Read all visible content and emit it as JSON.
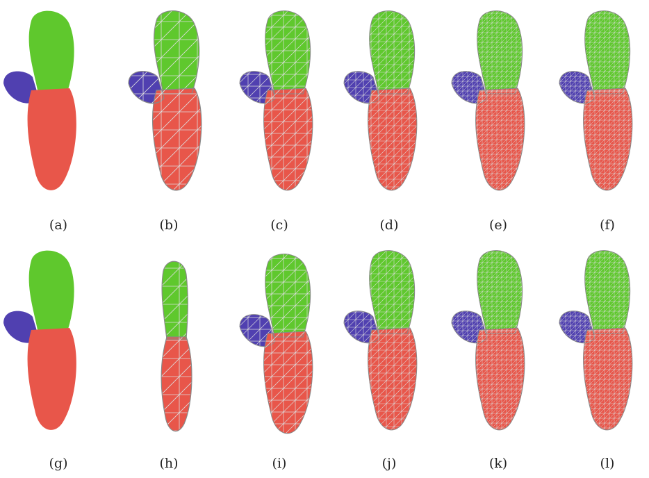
{
  "figure": {
    "panels": [
      {
        "label": "(a)"
      },
      {
        "label": "(b)"
      },
      {
        "label": "(c)"
      },
      {
        "label": "(d)"
      },
      {
        "label": "(e)"
      },
      {
        "label": "(f)"
      },
      {
        "label": "(g)"
      },
      {
        "label": "(h)"
      },
      {
        "label": "(i)"
      },
      {
        "label": "(j)"
      },
      {
        "label": "(k)"
      },
      {
        "label": "(l)"
      }
    ]
  }
}
